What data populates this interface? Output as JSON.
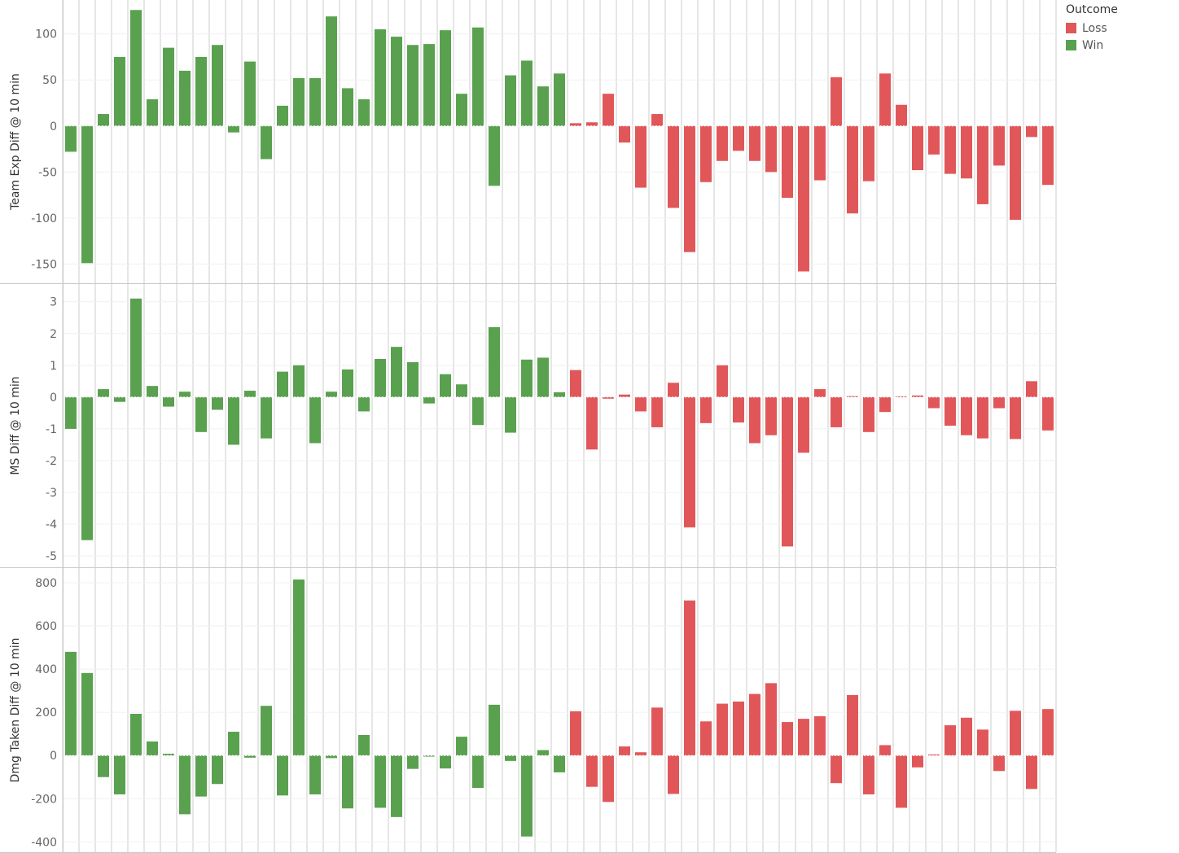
{
  "legend": {
    "title": "Outcome",
    "items": [
      {
        "label": "Loss",
        "color": "#e15759"
      },
      {
        "label": "Win",
        "color": "#59a14f"
      }
    ]
  },
  "colors": {
    "Loss": "#e15759",
    "Win": "#59a14f",
    "grid": "#cccccc"
  },
  "chart_data": [
    {
      "type": "bar",
      "ylabel": "Team Exp Diff @ 10 min",
      "ylim": [
        -162,
        128
      ],
      "yticks": [
        100,
        50,
        0,
        -50,
        -100,
        -150
      ],
      "outcomes": [
        "Win",
        "Win",
        "Win",
        "Win",
        "Win",
        "Win",
        "Win",
        "Win",
        "Win",
        "Win",
        "Win",
        "Win",
        "Win",
        "Win",
        "Win",
        "Win",
        "Win",
        "Win",
        "Win",
        "Win",
        "Win",
        "Win",
        "Win",
        "Win",
        "Win",
        "Win",
        "Win",
        "Win",
        "Win",
        "Win",
        "Win",
        "Loss",
        "Loss",
        "Loss",
        "Loss",
        "Loss",
        "Loss",
        "Loss",
        "Loss",
        "Loss",
        "Loss",
        "Loss",
        "Loss",
        "Loss",
        "Loss",
        "Loss",
        "Loss",
        "Loss",
        "Loss",
        "Loss",
        "Loss",
        "Loss",
        "Loss",
        "Loss",
        "Loss",
        "Loss",
        "Loss",
        "Loss",
        "Loss",
        "Loss",
        "Loss"
      ],
      "values": [
        -28,
        -149,
        13,
        75,
        126,
        29,
        85,
        60,
        75,
        88,
        -7,
        70,
        -36,
        22,
        52,
        52,
        119,
        41,
        29,
        105,
        97,
        88,
        89,
        104,
        35,
        107,
        -65,
        55,
        71,
        43,
        57,
        3,
        4,
        35,
        -18,
        -67,
        13,
        -89,
        -137,
        -61,
        -38,
        -27,
        -38,
        -50,
        -78,
        -158,
        -59,
        53,
        -95,
        -60,
        57,
        23,
        -48,
        -31,
        -52,
        -57,
        -85,
        -43,
        -102,
        -12,
        -64
      ]
    },
    {
      "type": "bar",
      "ylabel": "MS Diff @ 10 min",
      "ylim": [
        -5.1,
        3.3
      ],
      "yticks": [
        3,
        2,
        1,
        0,
        -1,
        -2,
        -3,
        -4,
        -5
      ],
      "outcomes": [
        "Win",
        "Win",
        "Win",
        "Win",
        "Win",
        "Win",
        "Win",
        "Win",
        "Win",
        "Win",
        "Win",
        "Win",
        "Win",
        "Win",
        "Win",
        "Win",
        "Win",
        "Win",
        "Win",
        "Win",
        "Win",
        "Win",
        "Win",
        "Win",
        "Win",
        "Win",
        "Win",
        "Win",
        "Win",
        "Win",
        "Win",
        "Loss",
        "Loss",
        "Loss",
        "Loss",
        "Loss",
        "Loss",
        "Loss",
        "Loss",
        "Loss",
        "Loss",
        "Loss",
        "Loss",
        "Loss",
        "Loss",
        "Loss",
        "Loss",
        "Loss",
        "Loss",
        "Loss",
        "Loss",
        "Loss",
        "Loss",
        "Loss",
        "Loss",
        "Loss",
        "Loss",
        "Loss",
        "Loss",
        "Loss",
        "Loss"
      ],
      "values": [
        -1.0,
        -4.5,
        0.25,
        -0.15,
        3.1,
        0.35,
        -0.3,
        0.17,
        -1.1,
        -0.4,
        -1.5,
        0.2,
        -1.3,
        0.8,
        1.0,
        -1.45,
        0.17,
        0.87,
        -0.45,
        1.2,
        1.58,
        1.1,
        -0.2,
        0.72,
        0.4,
        -0.88,
        2.2,
        -1.12,
        1.18,
        1.24,
        0.15,
        0.85,
        -1.65,
        -0.05,
        0.08,
        -0.45,
        -0.95,
        0.45,
        -4.1,
        -0.82,
        1.0,
        -0.8,
        -1.45,
        -1.2,
        -4.7,
        -1.75,
        0.25,
        -0.95,
        0.03,
        -1.1,
        -0.47,
        0.02,
        0.05,
        -0.35,
        -0.9,
        -1.2,
        -1.3,
        -0.35,
        -1.32,
        0.5,
        -1.05
      ]
    },
    {
      "type": "bar",
      "ylabel": "Dmg Taken Diff @ 10 min",
      "ylim": [
        -410,
        830
      ],
      "yticks": [
        800,
        600,
        400,
        200,
        0,
        -200,
        -400
      ],
      "outcomes": [
        "Win",
        "Win",
        "Win",
        "Win",
        "Win",
        "Win",
        "Win",
        "Win",
        "Win",
        "Win",
        "Win",
        "Win",
        "Win",
        "Win",
        "Win",
        "Win",
        "Win",
        "Win",
        "Win",
        "Win",
        "Win",
        "Win",
        "Win",
        "Win",
        "Win",
        "Win",
        "Win",
        "Win",
        "Win",
        "Win",
        "Win",
        "Loss",
        "Loss",
        "Loss",
        "Loss",
        "Loss",
        "Loss",
        "Loss",
        "Loss",
        "Loss",
        "Loss",
        "Loss",
        "Loss",
        "Loss",
        "Loss",
        "Loss",
        "Loss",
        "Loss",
        "Loss",
        "Loss",
        "Loss",
        "Loss",
        "Loss",
        "Loss",
        "Loss",
        "Loss",
        "Loss",
        "Loss",
        "Loss",
        "Loss",
        "Loss"
      ],
      "values": [
        480,
        382,
        -100,
        -180,
        193,
        65,
        8,
        -272,
        -190,
        -132,
        110,
        -10,
        230,
        -185,
        815,
        -180,
        -12,
        -245,
        95,
        -242,
        -285,
        -62,
        -5,
        -60,
        87,
        -150,
        235,
        -25,
        -375,
        25,
        -78,
        205,
        -145,
        -215,
        42,
        15,
        222,
        -178,
        718,
        158,
        240,
        250,
        285,
        335,
        155,
        170,
        182,
        -128,
        280,
        -180,
        48,
        -242,
        -55,
        5,
        140,
        175,
        120,
        -72,
        207,
        -155,
        215
      ]
    }
  ]
}
